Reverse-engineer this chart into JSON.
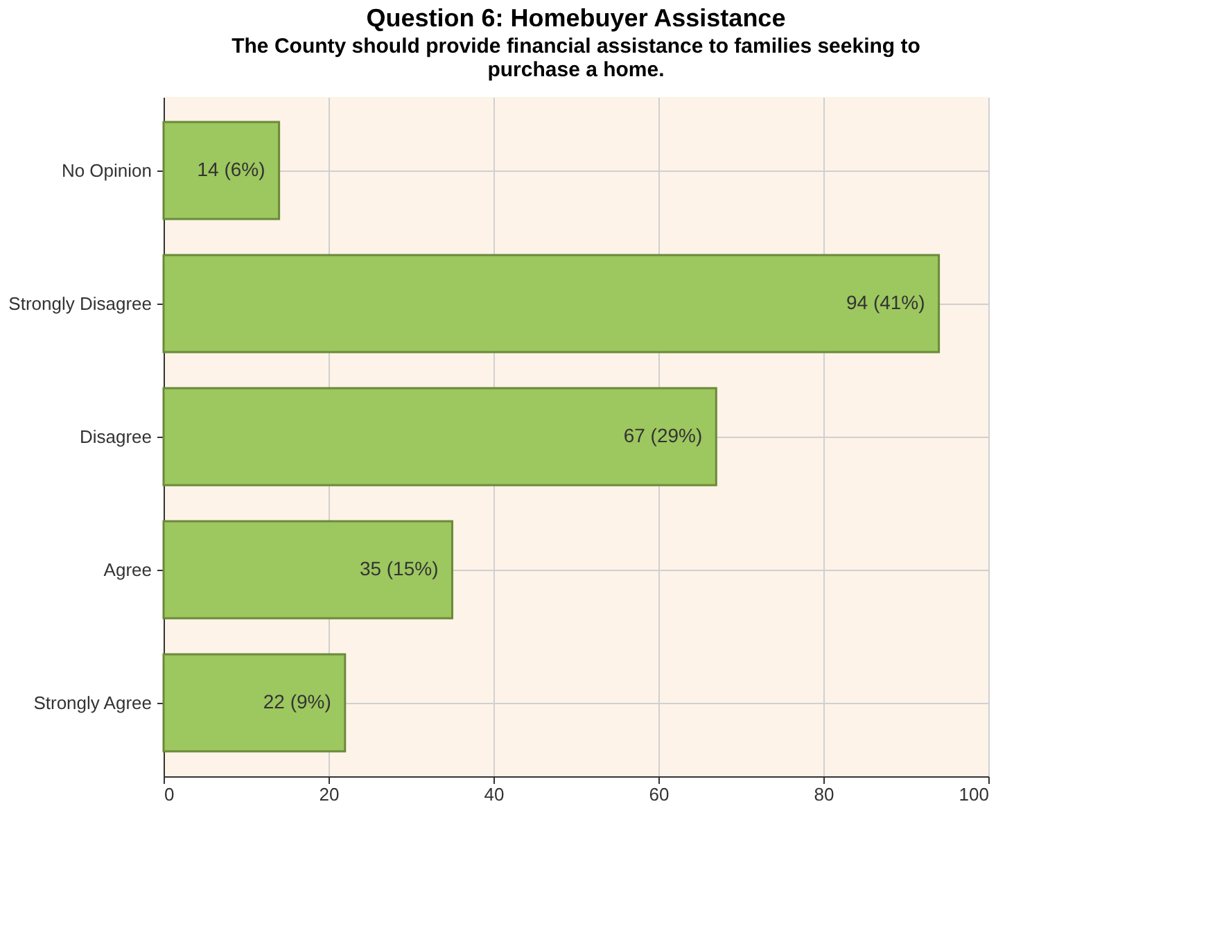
{
  "chart_data": {
    "type": "bar",
    "orientation": "horizontal",
    "title": "Question 6: Homebuyer Assistance",
    "subtitle": "The County should provide financial assistance to families seeking to purchase a home.",
    "categories": [
      "No Opinion",
      "Strongly Disagree",
      "Disagree",
      "Agree",
      "Strongly Agree"
    ],
    "values": [
      14,
      94,
      67,
      35,
      22
    ],
    "value_labels": [
      "14 (6%)",
      "94 (41%)",
      "67 (29%)",
      "35 (15%)",
      "22 (9%)"
    ],
    "color": "#9dc75f",
    "xlim": [
      0,
      100
    ],
    "xticks": [
      0,
      20,
      40,
      60,
      80,
      100
    ],
    "grid": true
  }
}
